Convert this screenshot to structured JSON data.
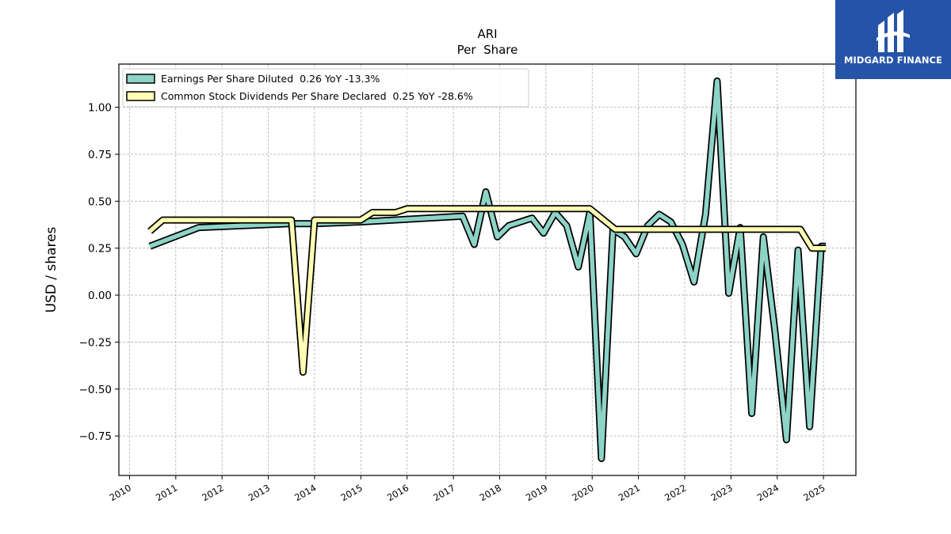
{
  "branding": {
    "logo_text": "MIDGARD FINANCE",
    "logo_color": "#2553a8"
  },
  "chart_data": {
    "type": "line",
    "title": "ARI",
    "subtitle": "Per  Share",
    "xlabel": "",
    "ylabel": "USD / shares",
    "xlim": [
      2009.77,
      2025.7
    ],
    "ylim": [
      -0.96,
      1.23
    ],
    "yticks": [
      -0.75,
      -0.5,
      -0.25,
      0.0,
      0.25,
      0.5,
      0.75,
      1.0
    ],
    "ytick_labels": [
      "−0.75",
      "−0.50",
      "−0.25",
      "0.00",
      "0.25",
      "0.50",
      "0.75",
      "1.00"
    ],
    "xticks": [
      2010,
      2011,
      2012,
      2013,
      2014,
      2015,
      2016,
      2017,
      2018,
      2019,
      2020,
      2021,
      2022,
      2023,
      2024,
      2025
    ],
    "xtick_labels": [
      "2010",
      "2011",
      "2012",
      "2013",
      "2014",
      "2015",
      "2016",
      "2017",
      "2018",
      "2019",
      "2020",
      "2021",
      "2022",
      "2023",
      "2024",
      "2025"
    ],
    "grid": true,
    "legend_position": "top-left",
    "series": [
      {
        "name": "Earnings Per Share Diluted  0.26 YoY -13.3%",
        "color": "#8dd3c7",
        "points": [
          [
            2010.44,
            0.26
          ],
          [
            2011.5,
            0.36
          ],
          [
            2013.45,
            0.38
          ],
          [
            2014.0,
            0.38
          ],
          [
            2015.0,
            0.39
          ],
          [
            2017.2,
            0.42
          ],
          [
            2017.45,
            0.27
          ],
          [
            2017.7,
            0.55
          ],
          [
            2017.95,
            0.31
          ],
          [
            2018.2,
            0.37
          ],
          [
            2018.7,
            0.41
          ],
          [
            2018.95,
            0.33
          ],
          [
            2019.2,
            0.44
          ],
          [
            2019.45,
            0.37
          ],
          [
            2019.7,
            0.15
          ],
          [
            2019.95,
            0.44
          ],
          [
            2020.2,
            -0.87
          ],
          [
            2020.45,
            0.35
          ],
          [
            2020.7,
            0.31
          ],
          [
            2020.95,
            0.22
          ],
          [
            2021.2,
            0.37
          ],
          [
            2021.45,
            0.43
          ],
          [
            2021.7,
            0.39
          ],
          [
            2021.95,
            0.27
          ],
          [
            2022.2,
            0.07
          ],
          [
            2022.45,
            0.43
          ],
          [
            2022.7,
            1.14
          ],
          [
            2022.95,
            0.01
          ],
          [
            2023.2,
            0.36
          ],
          [
            2023.45,
            -0.63
          ],
          [
            2023.7,
            0.31
          ],
          [
            2023.95,
            -0.19
          ],
          [
            2024.2,
            -0.77
          ],
          [
            2024.45,
            0.24
          ],
          [
            2024.7,
            -0.7
          ],
          [
            2024.95,
            0.26
          ],
          [
            2025.05,
            0.26
          ]
        ]
      },
      {
        "name": "Common Stock Dividends Per Share Declared  0.25 YoY -28.6%",
        "color": "#ffffb3",
        "points": [
          [
            2010.44,
            0.34
          ],
          [
            2010.72,
            0.4
          ],
          [
            2013.5,
            0.4
          ],
          [
            2013.75,
            -0.41
          ],
          [
            2014.0,
            0.4
          ],
          [
            2015.0,
            0.4
          ],
          [
            2015.25,
            0.44
          ],
          [
            2015.75,
            0.44
          ],
          [
            2016.0,
            0.46
          ],
          [
            2019.95,
            0.46
          ],
          [
            2020.25,
            0.4
          ],
          [
            2020.5,
            0.35
          ],
          [
            2024.5,
            0.35
          ],
          [
            2024.75,
            0.25
          ],
          [
            2025.05,
            0.25
          ]
        ]
      }
    ]
  }
}
